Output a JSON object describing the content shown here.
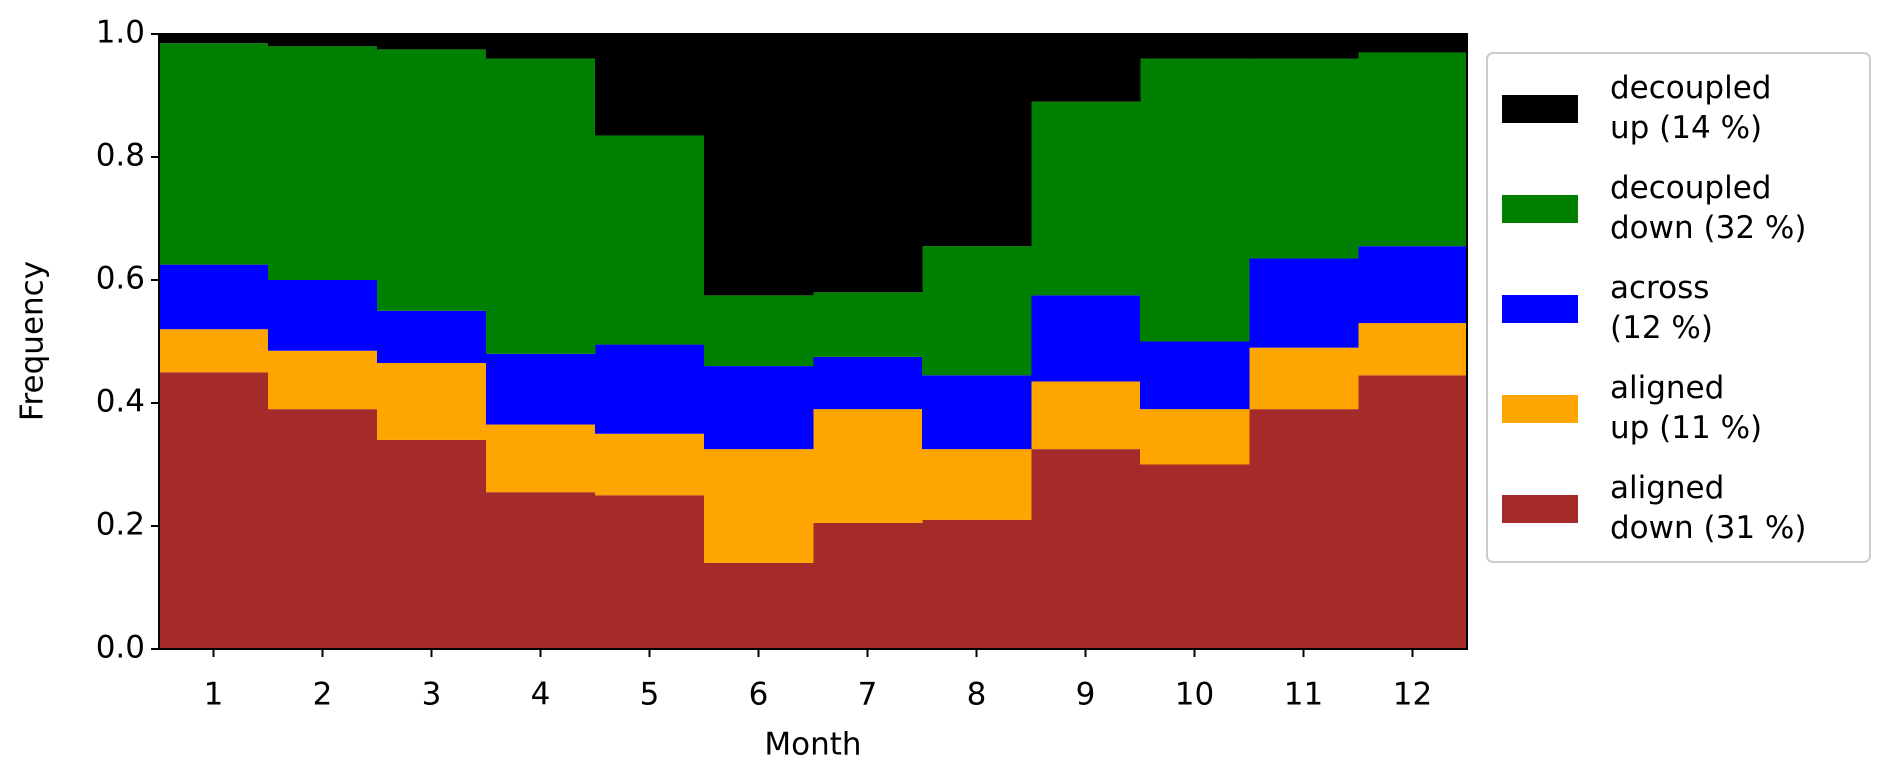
{
  "chart_data": {
    "type": "stacked_bar",
    "xlabel": "Month",
    "ylabel": "Frequency",
    "categories": [
      "1",
      "2",
      "3",
      "4",
      "5",
      "6",
      "7",
      "8",
      "9",
      "10",
      "11",
      "12"
    ],
    "series": [
      {
        "name": "aligned down (31 %)",
        "color": "#a52a2a",
        "values": [
          0.45,
          0.39,
          0.34,
          0.255,
          0.25,
          0.14,
          0.205,
          0.21,
          0.325,
          0.3,
          0.39,
          0.445
        ]
      },
      {
        "name": "aligned up (11 %)",
        "color": "#ffa500",
        "values": [
          0.07,
          0.095,
          0.125,
          0.11,
          0.1,
          0.185,
          0.185,
          0.115,
          0.11,
          0.09,
          0.1,
          0.085
        ]
      },
      {
        "name": "across (12 %)",
        "color": "#0000ff",
        "values": [
          0.105,
          0.115,
          0.085,
          0.115,
          0.145,
          0.135,
          0.085,
          0.12,
          0.14,
          0.11,
          0.145,
          0.125
        ]
      },
      {
        "name": "decoupled down (32 %)",
        "color": "#008000",
        "values": [
          0.36,
          0.38,
          0.425,
          0.48,
          0.34,
          0.115,
          0.105,
          0.21,
          0.315,
          0.46,
          0.325,
          0.315
        ]
      },
      {
        "name": "decoupled up (14 %)",
        "color": "#000000",
        "values": [
          0.015,
          0.02,
          0.025,
          0.04,
          0.165,
          0.425,
          0.42,
          0.345,
          0.11,
          0.04,
          0.04,
          0.03
        ]
      }
    ],
    "ylim": [
      0,
      1
    ],
    "yticks": [
      {
        "value": 0,
        "label": "0.0"
      },
      {
        "value": 0.2,
        "label": "0.2"
      },
      {
        "value": 0.4,
        "label": "0.4"
      },
      {
        "value": 0.6,
        "label": "0.6"
      },
      {
        "value": 0.8,
        "label": "0.8"
      },
      {
        "value": 1,
        "label": "1.0"
      }
    ],
    "legend": "outside right"
  }
}
